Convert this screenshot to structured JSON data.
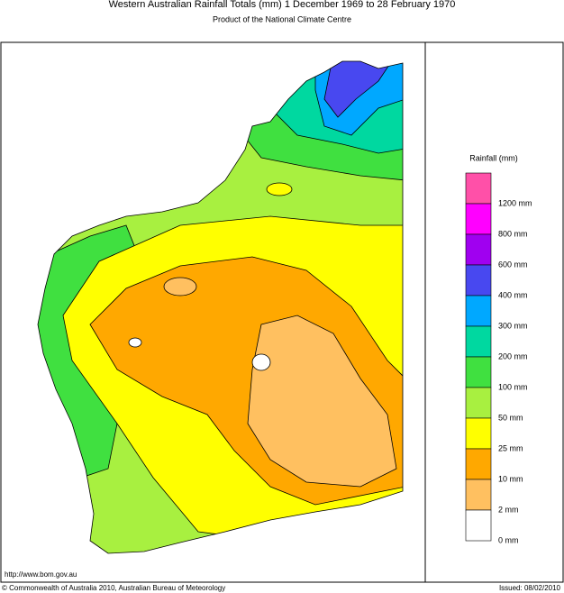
{
  "header": {
    "title": "Western Australian Rainfall Totals (mm) 1 December 1969 to 28 February 1970",
    "subtitle": "Product of the National Climate Centre"
  },
  "legend": {
    "title": "Rainfall (mm)",
    "colors": [
      "#ff50a8",
      "#ff00ff",
      "#a000f0",
      "#4848f0",
      "#00a8ff",
      "#00d8a0",
      "#40e040",
      "#a8f040",
      "#ffff00",
      "#ffa800",
      "#ffc060",
      "#ffffff"
    ],
    "labels": [
      "1200 mm",
      "800 mm",
      "600 mm",
      "400 mm",
      "300 mm",
      "200 mm",
      "100 mm",
      "50 mm",
      "25 mm",
      "10 mm",
      "2 mm",
      "0 mm"
    ]
  },
  "footer": {
    "url": "http://www.bom.gov.au",
    "copyright": "© Commonwealth of Australia 2010, Australian Bureau of Meteorology",
    "issued": "Issued: 08/02/2010"
  }
}
